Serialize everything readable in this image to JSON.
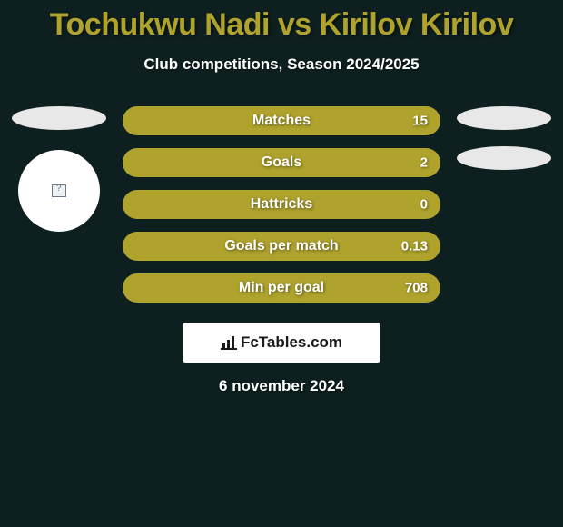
{
  "colors": {
    "bg": "#0e1f1f",
    "accent": "#afa32d",
    "white": "#ffffff",
    "light_gray": "#e8e8e8",
    "text_shadow": "rgba(0,0,0,0.45)",
    "attribution_text": "#1a1a1a"
  },
  "header": {
    "title": "Tochukwu Nadi vs Kirilov Kirilov",
    "subtitle": "Club competitions, Season 2024/2025"
  },
  "left": {
    "ellipse1_color": "#e8e8e8",
    "circle_color": "#ffffff",
    "has_circle": true
  },
  "right": {
    "ellipse1_color": "#e8e8e8",
    "ellipse2_color": "#e8e8e8",
    "has_circle": false
  },
  "bars": {
    "type": "horizontal-stat-bars",
    "fill_color": "#afa32d",
    "text_color": "#ffffff",
    "height": 32,
    "radius": 16,
    "font_size": 16,
    "items": [
      {
        "label": "Matches",
        "value": "15"
      },
      {
        "label": "Goals",
        "value": "2"
      },
      {
        "label": "Hattricks",
        "value": "0"
      },
      {
        "label": "Goals per match",
        "value": "0.13"
      },
      {
        "label": "Min per goal",
        "value": "708"
      }
    ]
  },
  "attribution": {
    "bg_color": "#ffffff",
    "text_color": "#1a1a1a",
    "text": "FcTables.com"
  },
  "date": "6 november 2024"
}
